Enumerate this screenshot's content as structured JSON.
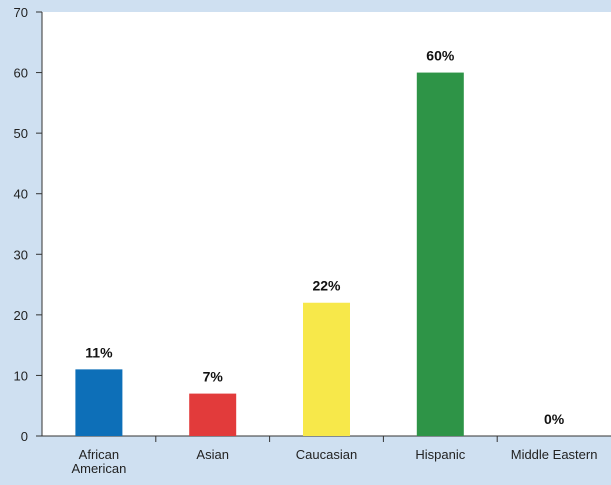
{
  "chart_data": {
    "type": "bar",
    "categories": [
      [
        "African",
        "American"
      ],
      [
        "Asian"
      ],
      [
        "Caucasian"
      ],
      [
        "Hispanic"
      ],
      [
        "Middle Eastern"
      ]
    ],
    "values": [
      11,
      7,
      22,
      60,
      0
    ],
    "data_labels": [
      "11%",
      "7%",
      "22%",
      "60%",
      "0%"
    ],
    "bar_colors": [
      "#0d6fb8",
      "#e23b3b",
      "#f7e84a",
      "#2e9447",
      "#2e9447"
    ],
    "ylim": [
      0,
      70
    ],
    "yticks": [
      0,
      10,
      20,
      30,
      40,
      50,
      60,
      70
    ],
    "plot_background": "#ffffff",
    "page_background": "#cfe0f1",
    "grid": false,
    "title": "",
    "xlabel": "",
    "ylabel": ""
  }
}
